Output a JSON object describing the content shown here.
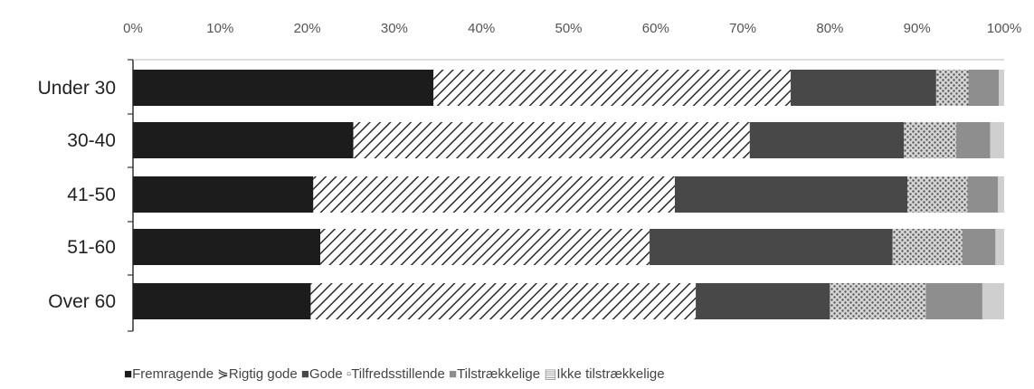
{
  "chart_data": {
    "type": "bar",
    "orientation": "horizontal",
    "stacked": "percent",
    "categories": [
      "Under 30",
      "30-40",
      "41-50",
      "51-60",
      "Over 60"
    ],
    "x_ticks": [
      "0%",
      "10%",
      "20%",
      "30%",
      "40%",
      "50%",
      "60%",
      "70%",
      "80%",
      "90%",
      "100%"
    ],
    "xlim": [
      0,
      100
    ],
    "axis_position": "top",
    "legend_position": "bottom",
    "grid": false,
    "series": [
      {
        "name": "Fremragende",
        "values": [
          34.5,
          25.3,
          20.7,
          21.5,
          20.4
        ]
      },
      {
        "name": "Rigtig gode",
        "values": [
          41.0,
          45.5,
          41.5,
          37.8,
          44.2
        ]
      },
      {
        "name": "Gode",
        "values": [
          16.7,
          17.7,
          26.7,
          27.9,
          15.4
        ]
      },
      {
        "name": "Tilfredsstillende",
        "values": [
          3.7,
          6.0,
          6.9,
          8.0,
          11.0
        ]
      },
      {
        "name": "Tilstrækkelige",
        "values": [
          3.5,
          3.9,
          3.5,
          3.8,
          6.5
        ]
      },
      {
        "name": "Ikke tilstrækkelige",
        "values": [
          0.6,
          1.6,
          0.7,
          1.0,
          2.5
        ]
      }
    ],
    "colors": [
      "#1c1c1c",
      "hatch-diagonal",
      "#484848",
      "hatch-dots",
      "#8e8e8e",
      "#cfcfcf"
    ]
  },
  "legend_markers": [
    "■",
    "⋟",
    "■",
    "▫",
    "■",
    "▤"
  ]
}
